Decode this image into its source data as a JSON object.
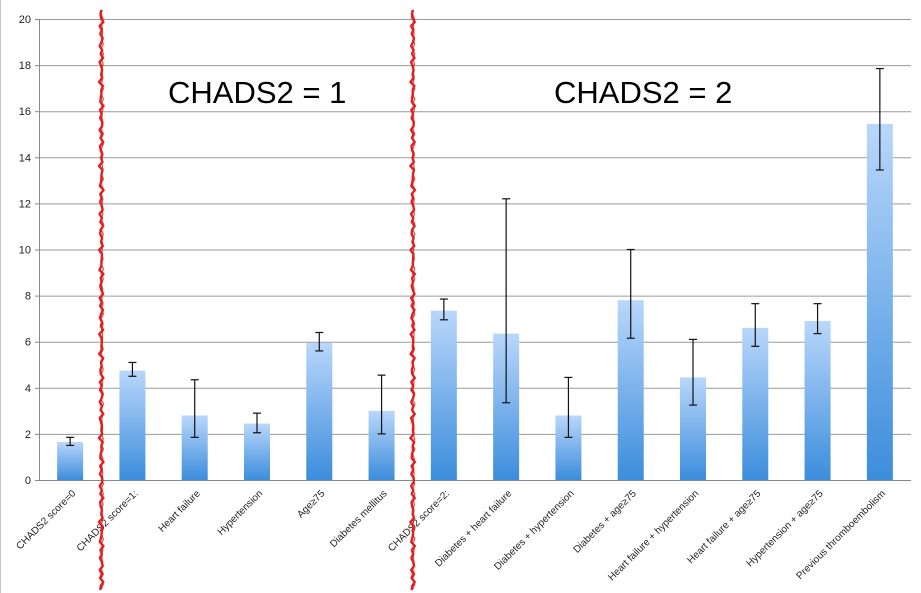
{
  "chart_data": {
    "type": "bar",
    "categories": [
      "CHADS2 score=0",
      "CHADS2 score=1:",
      "Heart failure",
      "Hypertension",
      "Age≥75",
      "Diabetes mellitus",
      "CHADS2 score=2:",
      "Diabetes + heart failure",
      "Diabetes + hypertension",
      "Diabetes + age≥75",
      "Heart failure + hypertension",
      "Heart failure + age≥75",
      "Hypertension + age≥75",
      "Previous thromboembolism"
    ],
    "values": [
      1.65,
      4.75,
      2.8,
      2.45,
      5.95,
      3.0,
      7.35,
      6.35,
      2.8,
      7.8,
      4.45,
      6.6,
      6.9,
      15.45
    ],
    "error_low": [
      1.5,
      4.5,
      1.85,
      2.05,
      5.6,
      2.0,
      6.95,
      3.35,
      1.85,
      6.15,
      3.25,
      5.8,
      6.35,
      13.45
    ],
    "error_high": [
      1.85,
      5.1,
      4.35,
      2.9,
      6.4,
      4.55,
      7.85,
      12.2,
      4.45,
      10.0,
      6.1,
      7.65,
      7.65,
      17.85
    ],
    "ylim": [
      0,
      20
    ],
    "yticks": [
      0,
      2,
      4,
      6,
      8,
      10,
      12,
      14,
      16,
      18,
      20
    ],
    "grid": true,
    "title": "",
    "xlabel": "",
    "ylabel": "",
    "bar_color_top": "#b9d7fb",
    "bar_color_bottom": "#3c8ddc",
    "divider_color": "#e02020",
    "annotations": [
      {
        "text": "CHADS2 = 1"
      },
      {
        "text": "CHADS2 = 2"
      }
    ]
  }
}
